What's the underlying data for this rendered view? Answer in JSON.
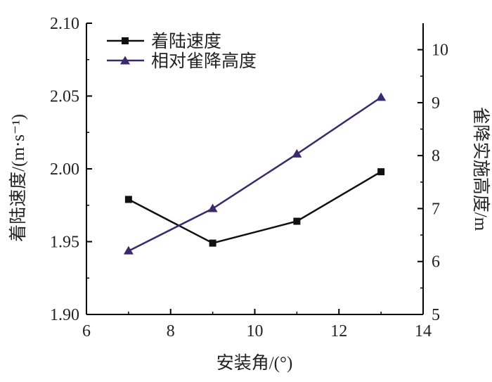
{
  "chart_data": {
    "type": "line",
    "title": "",
    "x": [
      7,
      9,
      11,
      13
    ],
    "xlabel": "安装角/(°)",
    "xlim": [
      6,
      14
    ],
    "xticks": [
      "6",
      "8",
      "10",
      "12",
      "14"
    ],
    "ylabel_left": "着陆速度/(m·s⁻¹)",
    "ylim_left": [
      1.9,
      2.1
    ],
    "yticks_left": [
      "1.90",
      "1.95",
      "2.00",
      "2.05",
      "2.10"
    ],
    "ylabel_right": "雀降实施高度/m",
    "ylim_right": [
      5,
      10.5
    ],
    "yticks_right": [
      "5",
      "6",
      "7",
      "8",
      "9",
      "10"
    ],
    "legend_position": "top-left",
    "series": [
      {
        "name": "着陆速度",
        "axis": "left",
        "marker": "square",
        "color": "#111111",
        "values": [
          1.979,
          1.949,
          1.964,
          1.998
        ]
      },
      {
        "name": "相对雀降高度",
        "axis": "right",
        "marker": "triangle",
        "color": "#3b2a6b",
        "values": [
          6.2,
          7.0,
          8.03,
          9.1
        ]
      }
    ]
  }
}
